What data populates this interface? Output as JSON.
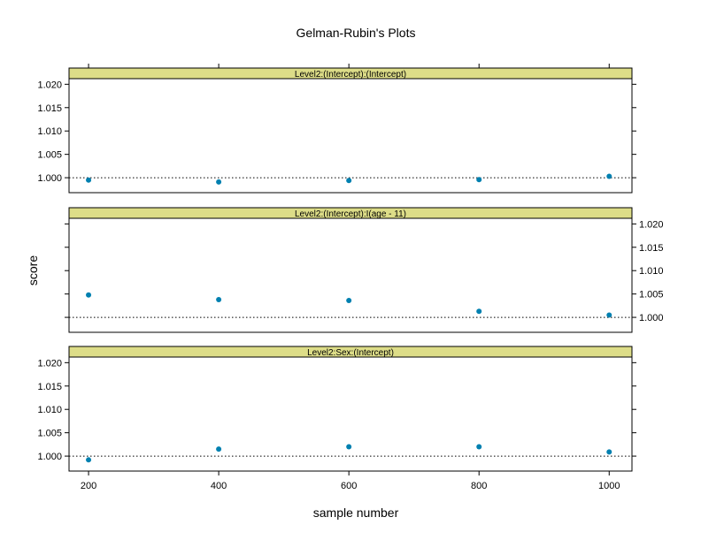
{
  "chart_data": {
    "type": "scatter",
    "title": "Gelman-Rubin's Plots",
    "xlabel": "sample number",
    "ylabel": "score",
    "xlim": [
      170,
      1035
    ],
    "ylim": [
      0.9968,
      1.0212
    ],
    "x_ticks": [
      200,
      400,
      600,
      800,
      1000
    ],
    "y_ticks": [
      1.0,
      1.005,
      1.01,
      1.015,
      1.02
    ],
    "y_tick_labels": [
      "1.000",
      "1.005",
      "1.010",
      "1.015",
      "1.020"
    ],
    "reference_line": 1.0,
    "grid": false,
    "colors": {
      "point": "#0080b0",
      "strip": "#dddd88",
      "reference": "#000000"
    },
    "panels": [
      {
        "name": "Level2:(Intercept):(Intercept)",
        "y_axis_side": "left",
        "x": [
          200,
          400,
          600,
          800,
          1000
        ],
        "y": [
          0.9995,
          0.9991,
          0.9994,
          0.9996,
          1.0003
        ]
      },
      {
        "name": "Level2:(Intercept):I(age - 11)",
        "y_axis_side": "right",
        "x": [
          200,
          400,
          600,
          800,
          1000
        ],
        "y": [
          1.0048,
          1.0038,
          1.0036,
          1.0013,
          1.0005
        ]
      },
      {
        "name": "Level2:Sex:(Intercept)",
        "y_axis_side": "left",
        "x": [
          200,
          400,
          600,
          800,
          1000
        ],
        "y": [
          0.9992,
          1.0015,
          1.002,
          1.002,
          1.0009
        ]
      }
    ]
  }
}
